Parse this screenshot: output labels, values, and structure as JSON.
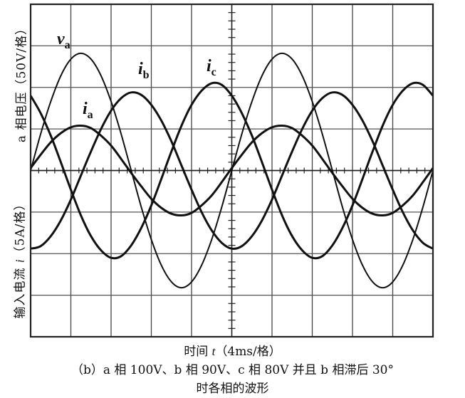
{
  "chart_data": {
    "type": "line",
    "style": "oscilloscope",
    "xlabel_prefix": "时间 ",
    "xlabel_var": "t",
    "xlabel_unit": "（4ms/格）",
    "ylabel_voltage": "a 相电压（50V/格）",
    "ylabel_current_prefix": "输入电流 ",
    "ylabel_current_var": "i",
    "ylabel_current_unit": "（5A/格）",
    "x_per_div_ms": 4,
    "voltage_per_div_V": 50,
    "current_per_div_A": 5,
    "xlim_ms": [
      0,
      40
    ],
    "ylim_voltage_V": [
      -200,
      200
    ],
    "ylim_current_A": [
      -20,
      20
    ],
    "grid": true,
    "x_ms": [
      0,
      1,
      2,
      3,
      4,
      5,
      6,
      7,
      8,
      9,
      10,
      11,
      12,
      13,
      14,
      15,
      16,
      17,
      18,
      19,
      20,
      21,
      22,
      23,
      24,
      25,
      26,
      27,
      28,
      29,
      30,
      31,
      32,
      33,
      34,
      35,
      36,
      37,
      38,
      39,
      40
    ],
    "series": [
      {
        "name": "v",
        "sub": "a",
        "axis": "voltage",
        "unit": "V",
        "values": [
          0,
          44,
          83,
          114,
          134,
          141,
          134,
          114,
          83,
          44,
          0,
          -44,
          -83,
          -114,
          -134,
          -141,
          -134,
          -114,
          -83,
          -44,
          0,
          44,
          83,
          114,
          134,
          141,
          134,
          114,
          83,
          44,
          0,
          -44,
          -83,
          -114,
          -134,
          -141,
          -134,
          -114,
          -83,
          -44,
          0
        ]
      },
      {
        "name": "i",
        "sub": "a",
        "axis": "current",
        "unit": "A",
        "values": [
          0.3,
          1.9,
          3.4,
          4.5,
          5.2,
          5.4,
          5.1,
          4.2,
          3.0,
          1.4,
          -0.3,
          -1.9,
          -3.4,
          -4.5,
          -5.2,
          -5.4,
          -5.1,
          -4.2,
          -3.0,
          -1.4,
          0.3,
          1.9,
          3.4,
          4.5,
          5.2,
          5.4,
          5.1,
          4.2,
          3.0,
          1.4,
          -0.3,
          -1.9,
          -3.4,
          -4.5,
          -5.2,
          -5.4,
          -5.1,
          -4.2,
          -3.0,
          -1.4,
          0.3
        ]
      },
      {
        "name": "i",
        "sub": "b",
        "axis": "current",
        "unit": "A",
        "values": [
          -9.4,
          -9.1,
          -7.9,
          -6.0,
          -3.5,
          -0.6,
          2.3,
          5.0,
          7.2,
          8.7,
          9.4,
          9.1,
          7.9,
          6.0,
          3.5,
          0.6,
          -2.3,
          -5.0,
          -7.2,
          -8.7,
          -9.4,
          -9.1,
          -7.9,
          -6.0,
          -3.5,
          -0.6,
          2.3,
          5.0,
          7.2,
          8.7,
          9.4,
          9.1,
          7.9,
          6.0,
          3.5,
          0.6,
          -2.3,
          -5.0,
          -7.2,
          -8.7,
          -9.4
        ]
      },
      {
        "name": "i",
        "sub": "c",
        "axis": "current",
        "unit": "A",
        "values": [
          9.0,
          6.9,
          4.2,
          1.0,
          -2.3,
          -5.4,
          -7.9,
          -9.6,
          -10.5,
          -10.3,
          -9.0,
          -6.9,
          -4.2,
          -1.0,
          2.3,
          5.4,
          7.9,
          9.6,
          10.5,
          10.3,
          9.0,
          6.9,
          4.2,
          1.0,
          -2.3,
          -5.4,
          -7.9,
          -9.6,
          -10.5,
          -10.3,
          -9.0,
          -6.9,
          -4.2,
          -1.0,
          2.3,
          5.4,
          7.9,
          9.6,
          10.5,
          10.3,
          9.0
        ]
      }
    ],
    "caption_line1": "（b）a 相 100V、b 相 90V、c 相 80V 并且 b 相滞后 30°",
    "caption_line2": "时各相的波形"
  }
}
